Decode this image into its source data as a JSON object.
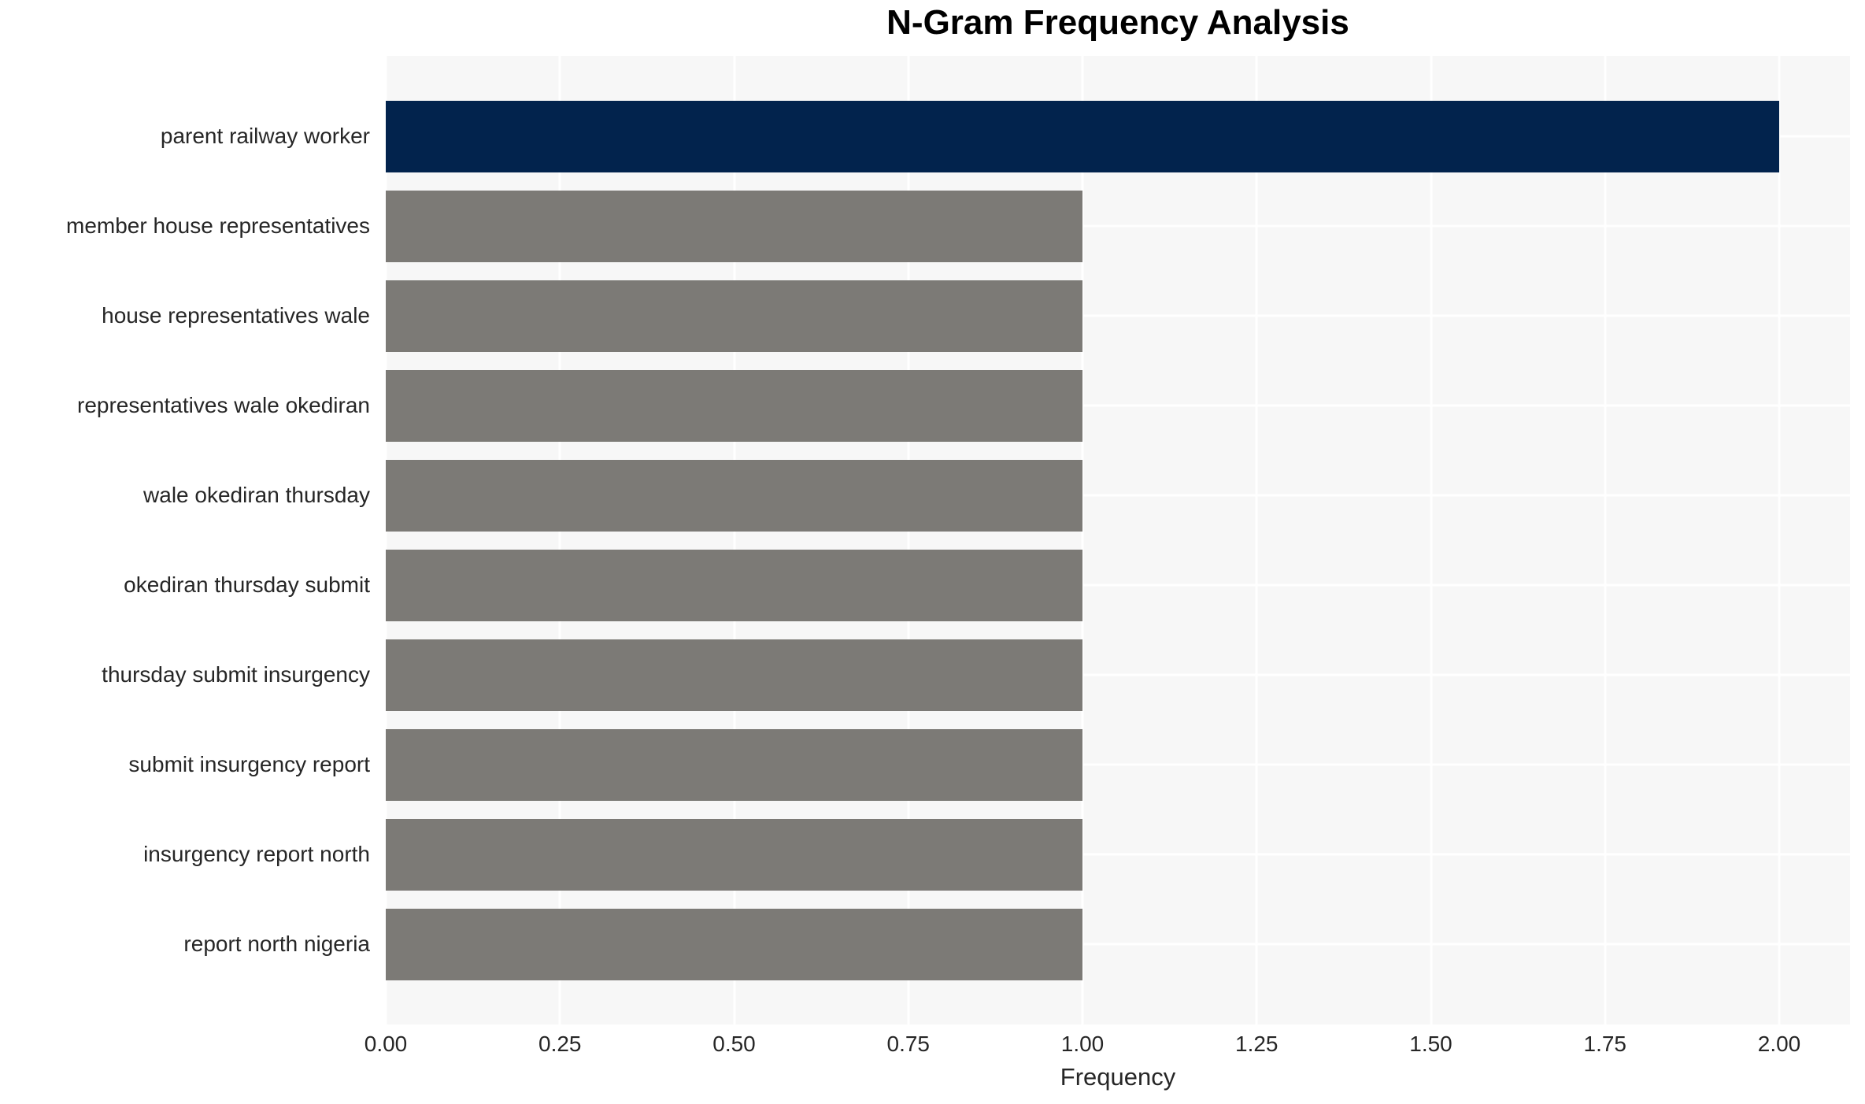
{
  "chart_data": {
    "type": "bar",
    "orientation": "horizontal",
    "title": "N-Gram Frequency Analysis",
    "xlabel": "Frequency",
    "ylabel": "",
    "categories": [
      "parent railway worker",
      "member house representatives",
      "house representatives wale",
      "representatives wale okediran",
      "wale okediran thursday",
      "okediran thursday submit",
      "thursday submit insurgency",
      "submit insurgency report",
      "insurgency report north",
      "report north nigeria"
    ],
    "values": [
      2,
      1,
      1,
      1,
      1,
      1,
      1,
      1,
      1,
      1
    ],
    "bar_colors": [
      "#02234d",
      "#7c7a76",
      "#7c7a76",
      "#7c7a76",
      "#7c7a76",
      "#7c7a76",
      "#7c7a76",
      "#7c7a76",
      "#7c7a76",
      "#7c7a76"
    ],
    "xlim": [
      0,
      2.1
    ],
    "xticks": [
      "0.00",
      "0.25",
      "0.50",
      "0.75",
      "1.00",
      "1.25",
      "1.50",
      "1.75",
      "2.00"
    ],
    "xtick_values": [
      0,
      0.25,
      0.5,
      0.75,
      1.0,
      1.25,
      1.5,
      1.75,
      2.0
    ],
    "grid": true,
    "legend": "none",
    "colors": {
      "highlight_bar": "#02234d",
      "default_bar": "#7c7a76",
      "plot_background": "#f7f7f7",
      "grid_line": "#ffffff",
      "tick_text": "#262626",
      "title_text": "#000000"
    }
  }
}
